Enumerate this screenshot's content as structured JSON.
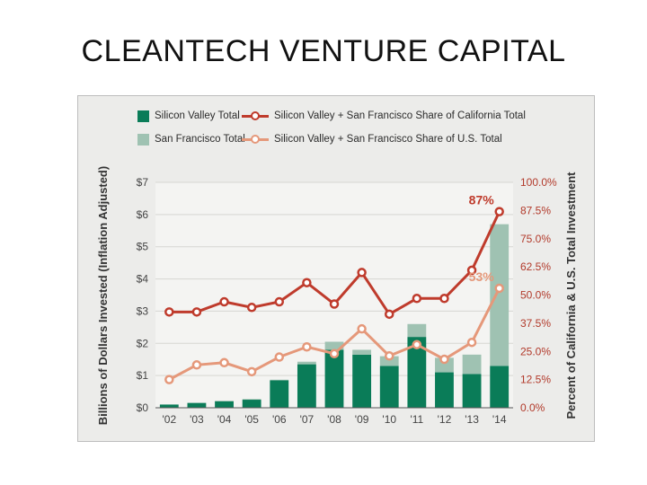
{
  "page": {
    "title": "CLEANTECH VENTURE CAPITAL"
  },
  "legend": {
    "sv_total": "Silicon Valley Total",
    "sf_total": "San Francisco Total",
    "ca_share": "Silicon Valley + San Francisco Share of California Total",
    "us_share": "Silicon Valley + San Francisco Share of U.S. Total"
  },
  "colors": {
    "sv_bar": "#0a7c58",
    "sf_bar": "#9fc2b2",
    "ca_line": "#bf3b2c",
    "us_line": "#e5987a",
    "background": "#ececea"
  },
  "chart_data": {
    "type": "bar",
    "title": "",
    "xlabel": "",
    "ylabel": "Billions of Dollars Invested (Inflation Adjusted)",
    "y2label": "Percent of California & U.S. Total Investment",
    "categories": [
      "'02",
      "'03",
      "'04",
      "'05",
      "'06",
      "'07",
      "'08",
      "'09",
      "'10",
      "'11",
      "'12",
      "'13",
      "'14"
    ],
    "ylim": [
      0,
      7
    ],
    "y_ticks": [
      "$0",
      "$1",
      "$2",
      "$3",
      "$4",
      "$5",
      "$6",
      "$7"
    ],
    "y2lim": [
      0,
      100
    ],
    "y2_ticks": [
      "0.0%",
      "12.5%",
      "25.0%",
      "37.5%",
      "50.0%",
      "62.5%",
      "75.0%",
      "87.5%",
      "100.0%"
    ],
    "series": [
      {
        "name": "Silicon Valley Total",
        "kind": "bar",
        "stack": 1,
        "values": [
          0.1,
          0.15,
          0.2,
          0.25,
          0.85,
          1.35,
          1.8,
          1.65,
          1.3,
          2.2,
          1.1,
          1.05,
          1.3
        ]
      },
      {
        "name": "San Francisco Total",
        "kind": "bar",
        "stack": 2,
        "values": [
          0,
          0,
          0.02,
          0.02,
          0.02,
          0.08,
          0.25,
          0.15,
          0.3,
          0.4,
          0.45,
          0.6,
          4.4
        ]
      },
      {
        "name": "Silicon Valley + San Francisco Share of California Total",
        "kind": "line",
        "axis": "right",
        "values": [
          42.5,
          42.5,
          47,
          44.5,
          47,
          55.5,
          46,
          60,
          41.5,
          48.5,
          48.5,
          61,
          87
        ]
      },
      {
        "name": "Silicon Valley + San Francisco Share of U.S. Total",
        "kind": "line",
        "axis": "right",
        "values": [
          12.5,
          19,
          20,
          16,
          22.5,
          27,
          24,
          35,
          23,
          28,
          21.5,
          29,
          53
        ]
      }
    ],
    "annotations": [
      {
        "text": "87%",
        "series": "Silicon Valley + San Francisco Share of California Total",
        "category": "'14"
      },
      {
        "text": "53%",
        "series": "Silicon Valley + San Francisco Share of U.S. Total",
        "category": "'14"
      }
    ]
  }
}
